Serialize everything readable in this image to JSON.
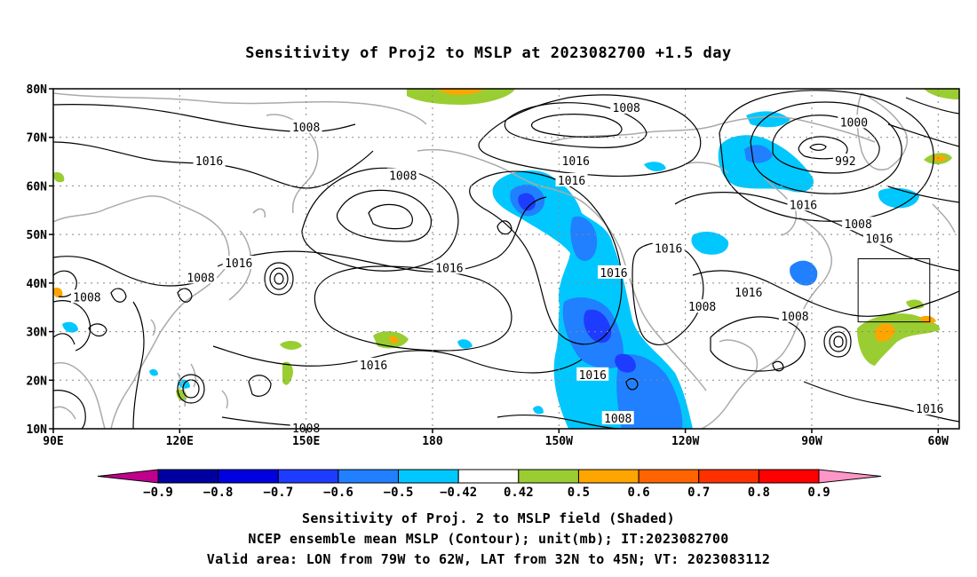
{
  "title": "Sensitivity of Proj2 to MSLP at 2023082700 +1.5 day",
  "map": {
    "lon_range": [
      90,
      305
    ],
    "lat_range": [
      10,
      80
    ],
    "lat_ticks": [
      {
        "value": 80,
        "label": "80N"
      },
      {
        "value": 70,
        "label": "70N"
      },
      {
        "value": 60,
        "label": "60N"
      },
      {
        "value": 50,
        "label": "50N"
      },
      {
        "value": 40,
        "label": "40N"
      },
      {
        "value": 30,
        "label": "30N"
      },
      {
        "value": 20,
        "label": "20N"
      },
      {
        "value": 10,
        "label": "10N"
      }
    ],
    "lon_ticks": [
      {
        "value": 90,
        "label": "90E"
      },
      {
        "value": 120,
        "label": "120E"
      },
      {
        "value": 150,
        "label": "150E"
      },
      {
        "value": 180,
        "label": "180"
      },
      {
        "value": 210,
        "label": "150W"
      },
      {
        "value": 240,
        "label": "120W"
      },
      {
        "value": 270,
        "label": "90W"
      },
      {
        "value": 300,
        "label": "60W"
      }
    ],
    "grid": "dotted",
    "valid_area": {
      "lon": [
        281,
        298
      ],
      "lat": [
        32,
        45
      ]
    },
    "contour_labels": [
      {
        "text": "1008",
        "lon": 150,
        "lat": 72
      },
      {
        "text": "1016",
        "lon": 127,
        "lat": 65
      },
      {
        "text": "1008",
        "lon": 173,
        "lat": 62
      },
      {
        "text": "1016",
        "lon": 213,
        "lat": 61
      },
      {
        "text": "1008",
        "lon": 226,
        "lat": 76
      },
      {
        "text": "1016",
        "lon": 214,
        "lat": 65
      },
      {
        "text": "1000",
        "lon": 280,
        "lat": 73
      },
      {
        "text": "992",
        "lon": 278,
        "lat": 65
      },
      {
        "text": "1016",
        "lon": 268,
        "lat": 56
      },
      {
        "text": "1008",
        "lon": 281,
        "lat": 52
      },
      {
        "text": "1016",
        "lon": 286,
        "lat": 49
      },
      {
        "text": "1016",
        "lon": 134,
        "lat": 44
      },
      {
        "text": "1008",
        "lon": 125,
        "lat": 41
      },
      {
        "text": "1008",
        "lon": 98,
        "lat": 37
      },
      {
        "text": "1016",
        "lon": 184,
        "lat": 43
      },
      {
        "text": "1016",
        "lon": 236,
        "lat": 47
      },
      {
        "text": "1016",
        "lon": 223,
        "lat": 42
      },
      {
        "text": "1008",
        "lon": 244,
        "lat": 35
      },
      {
        "text": "1016",
        "lon": 255,
        "lat": 38
      },
      {
        "text": "1008",
        "lon": 266,
        "lat": 33
      },
      {
        "text": "1016",
        "lon": 166,
        "lat": 23
      },
      {
        "text": "1016",
        "lon": 218,
        "lat": 21
      },
      {
        "text": "1008",
        "lon": 224,
        "lat": 12
      },
      {
        "text": "1008",
        "lon": 150,
        "lat": 10
      },
      {
        "text": "1016",
        "lon": 298,
        "lat": 14
      }
    ],
    "shading_colors": {
      "neg_0.9": "#0000a0",
      "neg_0.8": "#0000e0",
      "neg_0.7": "#1e3cff",
      "neg_0.6": "#2080ff",
      "neg_0.5": "#00c8ff",
      "pos_0.5": "#9acd32",
      "pos_0.6": "#ffa500",
      "pos_0.7": "#ff6400",
      "pos_0.8": "#ff3000"
    }
  },
  "colorbar": {
    "labels": [
      "-0.9",
      "-0.8",
      "-0.7",
      "-0.6",
      "-0.5",
      "-0.42",
      "0.42",
      "0.5",
      "0.6",
      "0.7",
      "0.8",
      "0.9"
    ],
    "colors": [
      "#0000a0",
      "#0000e0",
      "#1e3cff",
      "#2080ff",
      "#00c8ff",
      "#ffffff",
      "#9acd32",
      "#ffa500",
      "#ff6400",
      "#ff3000",
      "#ff0000"
    ],
    "low_end_color": "#c0008c",
    "high_end_color": "#ff96c8"
  },
  "captions": {
    "line1": "Sensitivity of Proj. 2 to MSLP field (Shaded)",
    "line2": "NCEP ensemble mean MSLP (Contour); unit(mb); IT:2023082700",
    "line3": "Valid area: LON from 79W to 62W, LAT from 32N to 45N; VT: 2023083112"
  }
}
